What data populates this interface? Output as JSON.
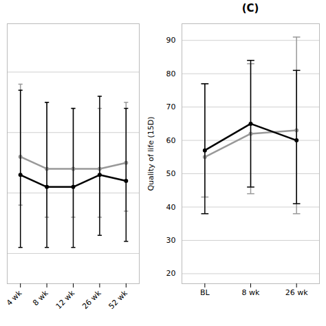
{
  "chart_data": [
    {
      "type": "line",
      "categories": [
        "4 wk",
        "8 wk",
        "12 wk",
        "26 wk",
        "52 wk"
      ],
      "series": [
        {
          "color": "#999999",
          "marker": "circle",
          "values": [
            16,
            14,
            14,
            14,
            15
          ],
          "yerr_lower": [
            8,
            8,
            8,
            8,
            8
          ],
          "yerr_upper": [
            12,
            11,
            10,
            10,
            10
          ]
        },
        {
          "color": "#000000",
          "marker": "circle",
          "values": [
            13,
            11,
            11,
            13,
            12
          ],
          "yerr_lower": [
            12,
            10,
            10,
            10,
            10
          ],
          "yerr_upper": [
            14,
            14,
            13,
            13,
            12
          ]
        }
      ],
      "ylim": [
        -5,
        38
      ],
      "yticks": [
        0,
        10,
        20,
        30
      ],
      "grid": true,
      "tick_labels": "x"
    },
    {
      "type": "line",
      "title": "(C)",
      "ylabel": "Quality of life (15D)",
      "categories": [
        "BL",
        "8 wk",
        "26 wk"
      ],
      "series": [
        {
          "color": "#999999",
          "marker": "circle",
          "values": [
            55,
            62,
            63
          ],
          "yerr_lower": [
            12,
            18,
            25
          ],
          "yerr_upper": [
            22,
            21,
            28
          ]
        },
        {
          "color": "#000000",
          "marker": "circle",
          "values": [
            57,
            65,
            60
          ],
          "yerr_lower": [
            19,
            19,
            19
          ],
          "yerr_upper": [
            20,
            19,
            21
          ]
        }
      ],
      "ylim": [
        17,
        95
      ],
      "yticks": [
        20,
        30,
        40,
        50,
        60,
        70,
        80,
        90
      ],
      "grid": true
    }
  ]
}
